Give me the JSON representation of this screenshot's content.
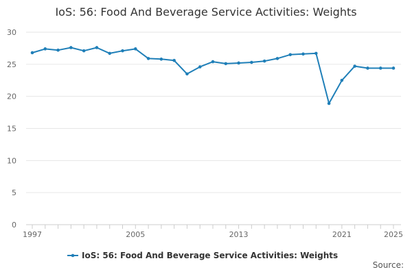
{
  "chart_data": {
    "type": "line",
    "title": "IoS: 56: Food And Beverage Service Activities: Weights",
    "xlabel": "",
    "ylabel": "",
    "x": [
      1997,
      1998,
      1999,
      2000,
      2001,
      2002,
      2003,
      2004,
      2005,
      2006,
      2007,
      2008,
      2009,
      2010,
      2011,
      2012,
      2013,
      2014,
      2015,
      2016,
      2017,
      2018,
      2019,
      2020,
      2021,
      2022,
      2023,
      2024,
      2025
    ],
    "series": [
      {
        "name": "IoS: 56: Food And Beverage Service Activities: Weights",
        "values": [
          26.8,
          27.4,
          27.2,
          27.6,
          27.1,
          27.6,
          26.7,
          27.1,
          27.4,
          25.9,
          25.8,
          25.6,
          23.5,
          24.6,
          25.4,
          25.1,
          25.2,
          25.3,
          25.5,
          25.9,
          26.5,
          26.6,
          26.7,
          18.9,
          22.5,
          24.7,
          24.4,
          24.4,
          24.4
        ]
      }
    ],
    "xticks": [
      1997,
      2005,
      2013,
      2021,
      2025
    ],
    "yticks": [
      0,
      5,
      10,
      15,
      20,
      25,
      30
    ],
    "xlim": [
      1997,
      2025
    ],
    "ylim": [
      0,
      30
    ],
    "grid": true,
    "legend_position": "bottom",
    "source_label": "Source:",
    "colors": {
      "series": "#1f7fb8",
      "grid": "#e6e6e6",
      "axis": "#cccccc",
      "text": "#333333"
    }
  }
}
